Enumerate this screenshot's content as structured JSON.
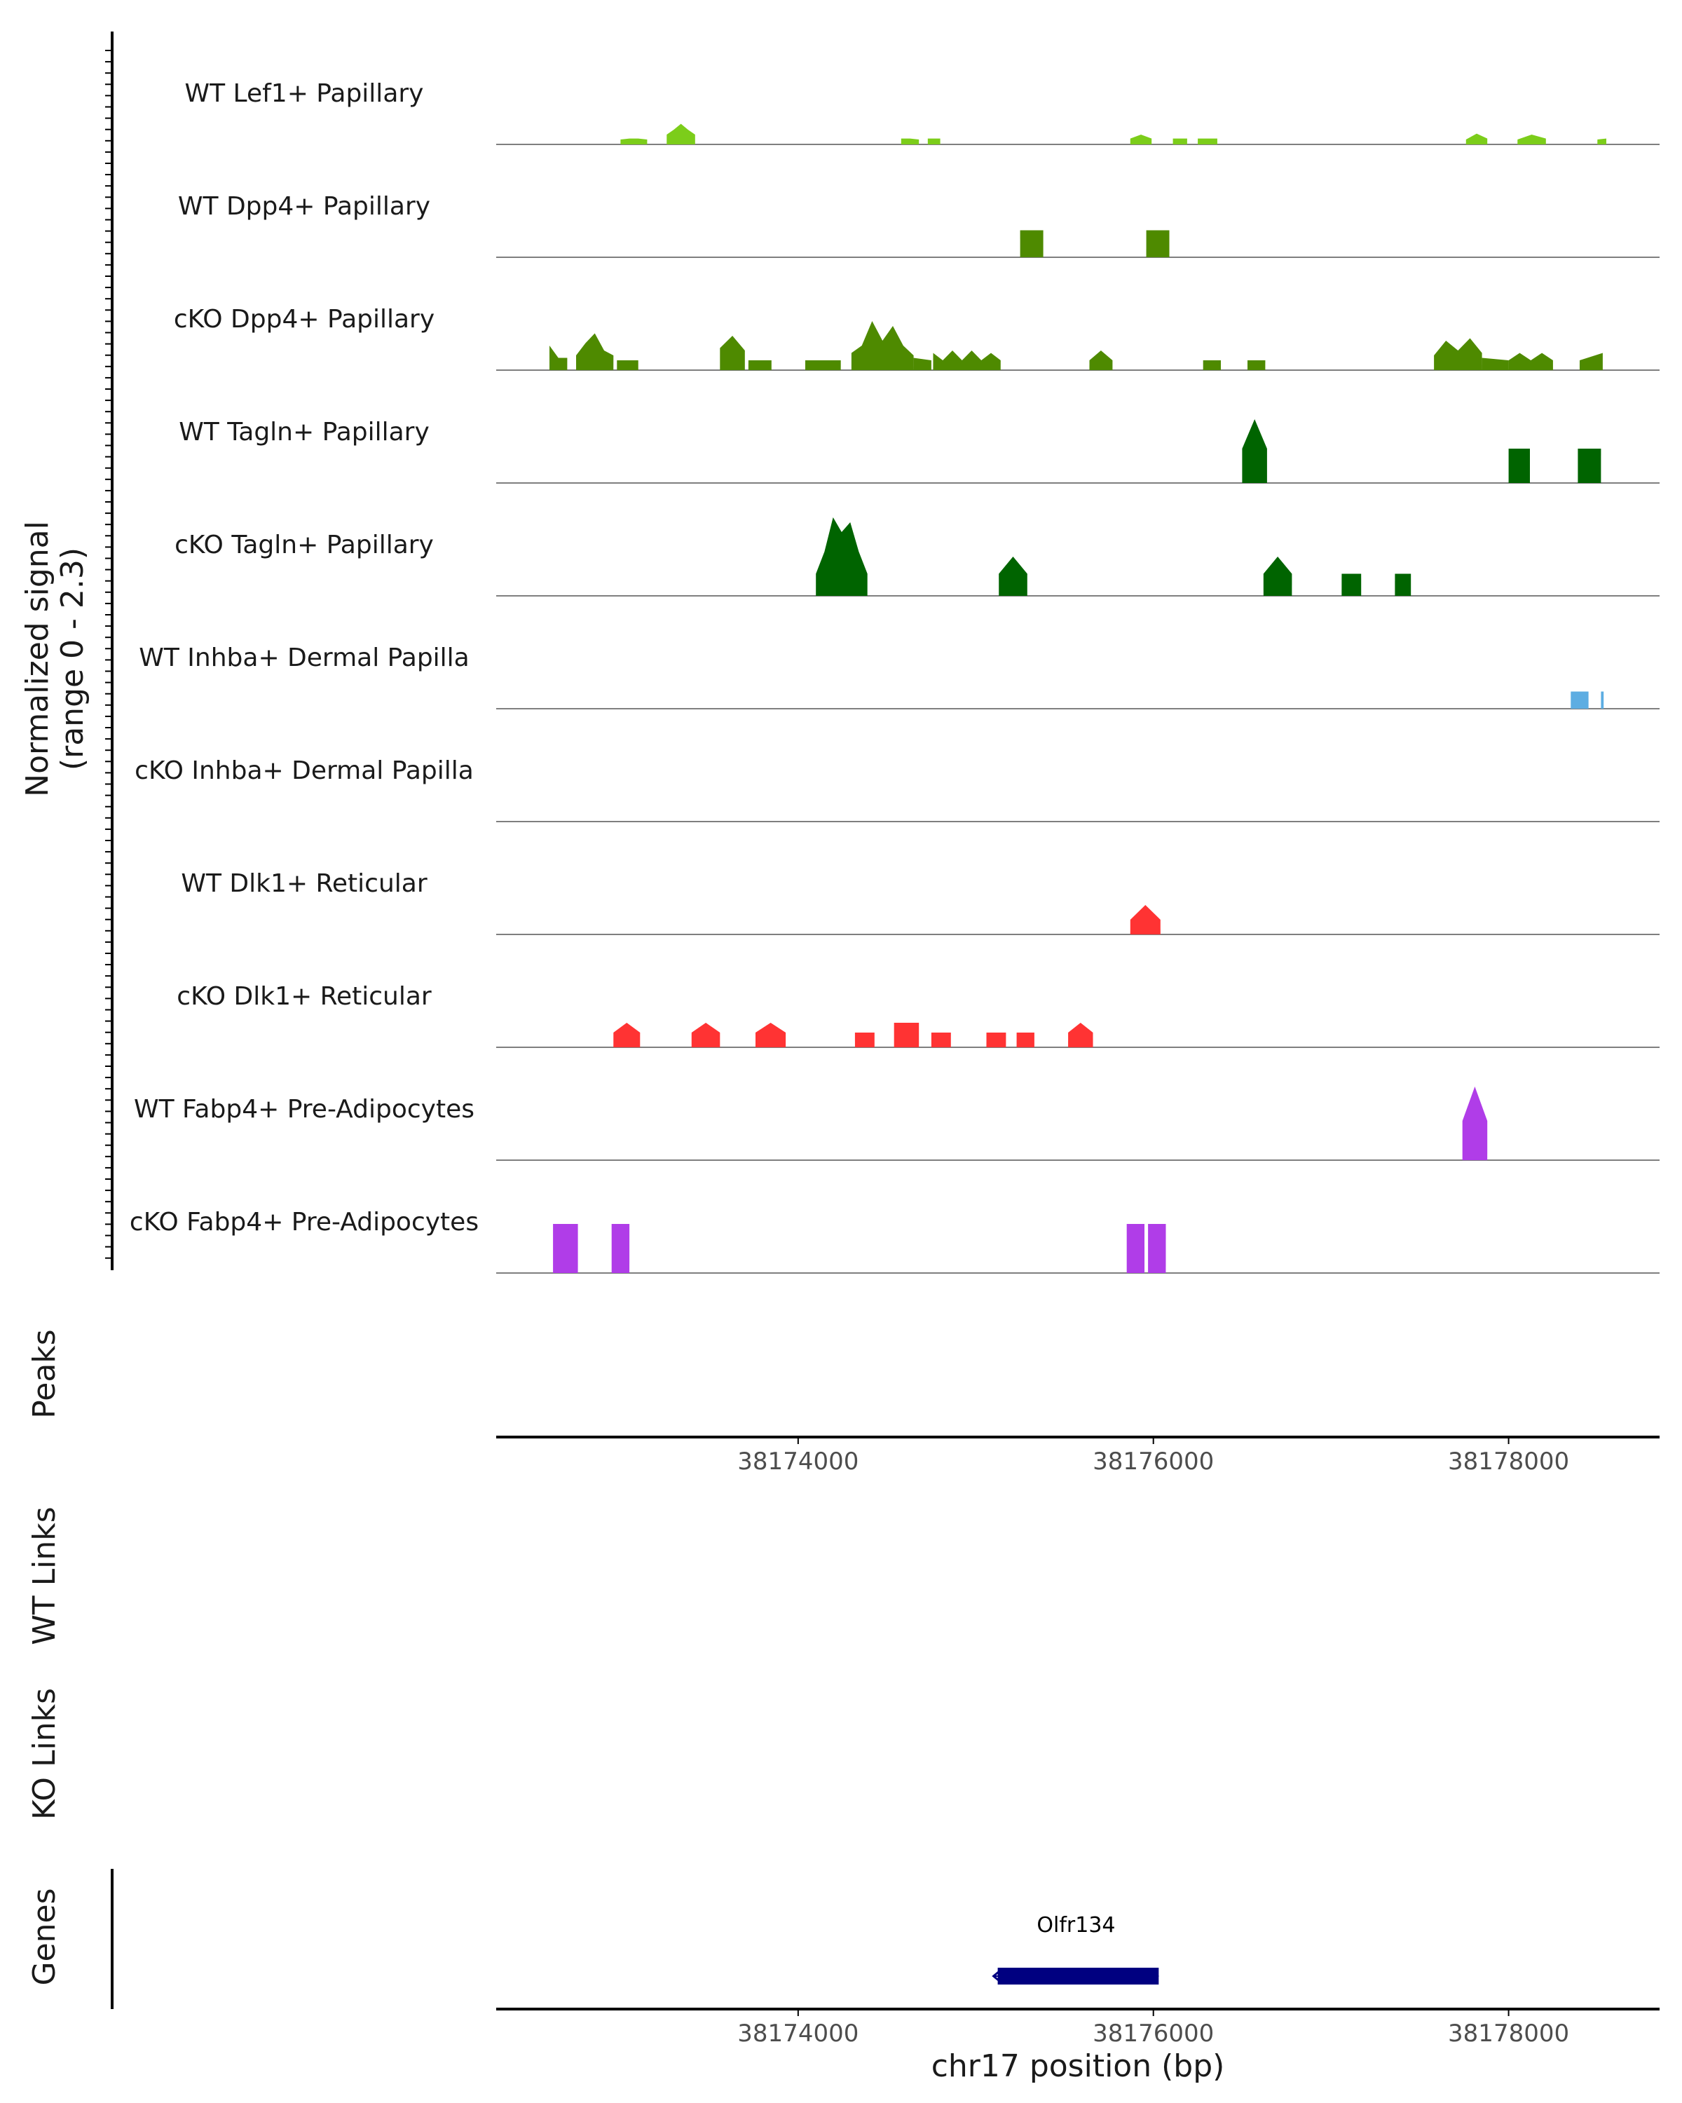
{
  "chart_data": {
    "type": "area",
    "title": "",
    "chromosome": "chr17",
    "xlabel": "chr17 position (bp)",
    "ylabel_line1": "Normalized signal",
    "ylabel_line2": "(range 0 - 2.3)",
    "signal_range": [
      0,
      2.3
    ],
    "xlim": [
      38172300,
      38178850
    ],
    "x_ticks": [
      38174000,
      38176000,
      38178000
    ],
    "x_tick_labels": [
      "38174000",
      "38176000",
      "38178000"
    ],
    "section_labels": {
      "peaks": "Peaks",
      "wt_links": "WT Links",
      "ko_links": "KO Links",
      "genes": "Genes"
    },
    "series": [
      {
        "name": "WT Lef1+ Papillary",
        "color": "#7ccd1a",
        "segments": [
          {
            "start": 38173000,
            "end": 38173150,
            "values": [
              0.1,
              0.12,
              0.12,
              0.1
            ]
          },
          {
            "start": 38173260,
            "end": 38173420,
            "values": [
              0.2,
              0.3,
              0.42,
              0.3,
              0.2
            ]
          },
          {
            "start": 38174580,
            "end": 38174680,
            "values": [
              0.12,
              0.12,
              0.1
            ]
          },
          {
            "start": 38174730,
            "end": 38174800,
            "values": [
              0.12,
              0.12
            ]
          },
          {
            "start": 38175870,
            "end": 38175990,
            "values": [
              0.12,
              0.2,
              0.12
            ]
          },
          {
            "start": 38176110,
            "end": 38176190,
            "values": [
              0.12,
              0.12
            ]
          },
          {
            "start": 38176250,
            "end": 38176360,
            "values": [
              0.12,
              0.12
            ]
          },
          {
            "start": 38177760,
            "end": 38177880,
            "values": [
              0.1,
              0.22,
              0.12
            ]
          },
          {
            "start": 38178050,
            "end": 38178210,
            "values": [
              0.1,
              0.2,
              0.12
            ]
          },
          {
            "start": 38178500,
            "end": 38178550,
            "values": [
              0.1,
              0.12
            ]
          }
        ]
      },
      {
        "name": "WT Dpp4+ Papillary",
        "color": "#4e8a00",
        "segments": [
          {
            "start": 38175250,
            "end": 38175380,
            "values": [
              0.55,
              0.55
            ]
          },
          {
            "start": 38175960,
            "end": 38176090,
            "values": [
              0.55,
              0.55
            ]
          }
        ]
      },
      {
        "name": "cKO Dpp4+ Papillary",
        "color": "#4e8a00",
        "segments": [
          {
            "start": 38172600,
            "end": 38172700,
            "values": [
              0.5,
              0.25,
              0.25
            ]
          },
          {
            "start": 38172750,
            "end": 38172960,
            "values": [
              0.3,
              0.55,
              0.75,
              0.4,
              0.3
            ]
          },
          {
            "start": 38172980,
            "end": 38173100,
            "values": [
              0.2,
              0.2
            ]
          },
          {
            "start": 38173560,
            "end": 38173700,
            "values": [
              0.45,
              0.7,
              0.4
            ]
          },
          {
            "start": 38173720,
            "end": 38173850,
            "values": [
              0.2,
              0.2
            ]
          },
          {
            "start": 38174040,
            "end": 38174240,
            "values": [
              0.2,
              0.2
            ]
          },
          {
            "start": 38174300,
            "end": 38174650,
            "values": [
              0.35,
              0.5,
              1.0,
              0.6,
              0.9,
              0.5,
              0.3
            ]
          },
          {
            "start": 38174650,
            "end": 38174750,
            "values": [
              0.25,
              0.2
            ]
          },
          {
            "start": 38174760,
            "end": 38175140,
            "values": [
              0.35,
              0.2,
              0.4,
              0.2,
              0.4,
              0.2,
              0.35,
              0.2
            ]
          },
          {
            "start": 38175640,
            "end": 38175770,
            "values": [
              0.2,
              0.4,
              0.2
            ]
          },
          {
            "start": 38176280,
            "end": 38176380,
            "values": [
              0.2,
              0.2
            ]
          },
          {
            "start": 38176530,
            "end": 38176630,
            "values": [
              0.2,
              0.2
            ]
          },
          {
            "start": 38177580,
            "end": 38177850,
            "values": [
              0.3,
              0.6,
              0.4,
              0.65,
              0.35
            ]
          },
          {
            "start": 38177850,
            "end": 38178000,
            "values": [
              0.25,
              0.2
            ]
          },
          {
            "start": 38178000,
            "end": 38178250,
            "values": [
              0.2,
              0.35,
              0.2,
              0.35,
              0.2
            ]
          },
          {
            "start": 38178400,
            "end": 38178530,
            "values": [
              0.2,
              0.35
            ]
          }
        ]
      },
      {
        "name": "WT Tagln+ Papillary",
        "color": "#006400",
        "segments": [
          {
            "start": 38176500,
            "end": 38176640,
            "values": [
              0.7,
              1.3,
              0.7
            ]
          },
          {
            "start": 38178000,
            "end": 38178120,
            "values": [
              0.7,
              0.7
            ]
          },
          {
            "start": 38178390,
            "end": 38178520,
            "values": [
              0.7,
              0.7
            ]
          }
        ]
      },
      {
        "name": "cKO Tagln+ Papillary",
        "color": "#006400",
        "segments": [
          {
            "start": 38174100,
            "end": 38174390,
            "values": [
              0.45,
              0.9,
              1.6,
              1.3,
              1.5,
              0.9,
              0.45
            ]
          },
          {
            "start": 38175130,
            "end": 38175290,
            "values": [
              0.45,
              0.8,
              0.45
            ]
          },
          {
            "start": 38176620,
            "end": 38176780,
            "values": [
              0.45,
              0.8,
              0.45
            ]
          },
          {
            "start": 38177060,
            "end": 38177170,
            "values": [
              0.45,
              0.45
            ]
          },
          {
            "start": 38177360,
            "end": 38177450,
            "values": [
              0.45,
              0.45
            ]
          }
        ]
      },
      {
        "name": "WT Inhba+ Dermal Papilla",
        "color": "#5dade2",
        "segments": [
          {
            "start": 38178350,
            "end": 38178450,
            "values": [
              0.35,
              0.35
            ]
          },
          {
            "start": 38178520,
            "end": 38178535,
            "values": [
              0.35,
              0.35
            ]
          }
        ]
      },
      {
        "name": "cKO Inhba+ Dermal Papilla",
        "color": "#5dade2",
        "segments": []
      },
      {
        "name": "WT Dlk1+ Reticular",
        "color": "#ff3333",
        "segments": [
          {
            "start": 38175870,
            "end": 38176040,
            "values": [
              0.3,
              0.6,
              0.3
            ]
          }
        ]
      },
      {
        "name": "cKO Dlk1+ Reticular",
        "color": "#ff3333",
        "segments": [
          {
            "start": 38172960,
            "end": 38173110,
            "values": [
              0.3,
              0.5,
              0.3
            ]
          },
          {
            "start": 38173400,
            "end": 38173560,
            "values": [
              0.3,
              0.5,
              0.3
            ]
          },
          {
            "start": 38173760,
            "end": 38173930,
            "values": [
              0.3,
              0.5,
              0.3
            ]
          },
          {
            "start": 38174320,
            "end": 38174430,
            "values": [
              0.3,
              0.3
            ]
          },
          {
            "start": 38174540,
            "end": 38174680,
            "values": [
              0.5,
              0.5
            ]
          },
          {
            "start": 38174750,
            "end": 38174860,
            "values": [
              0.3,
              0.3
            ]
          },
          {
            "start": 38175060,
            "end": 38175170,
            "values": [
              0.3,
              0.3
            ]
          },
          {
            "start": 38175230,
            "end": 38175330,
            "values": [
              0.3,
              0.3
            ]
          },
          {
            "start": 38175520,
            "end": 38175660,
            "values": [
              0.3,
              0.5,
              0.3
            ]
          }
        ]
      },
      {
        "name": "WT Fabp4+ Pre-Adipocytes",
        "color": "#b03de8",
        "segments": [
          {
            "start": 38177740,
            "end": 38177880,
            "values": [
              0.8,
              1.5,
              0.8
            ]
          }
        ]
      },
      {
        "name": "cKO Fabp4+ Pre-Adipocytes",
        "color": "#b03de8",
        "segments": [
          {
            "start": 38172620,
            "end": 38172760,
            "values": [
              1.0,
              1.0
            ]
          },
          {
            "start": 38172950,
            "end": 38173050,
            "values": [
              1.0,
              1.0
            ]
          },
          {
            "start": 38175850,
            "end": 38175950,
            "values": [
              1.0,
              1.0
            ]
          },
          {
            "start": 38175970,
            "end": 38176070,
            "values": [
              1.0,
              1.0
            ]
          }
        ]
      }
    ],
    "genes": [
      {
        "name": "Olfr134",
        "start": 38175100,
        "end": 38176030,
        "strand": "-",
        "color": "#000080"
      }
    ]
  }
}
